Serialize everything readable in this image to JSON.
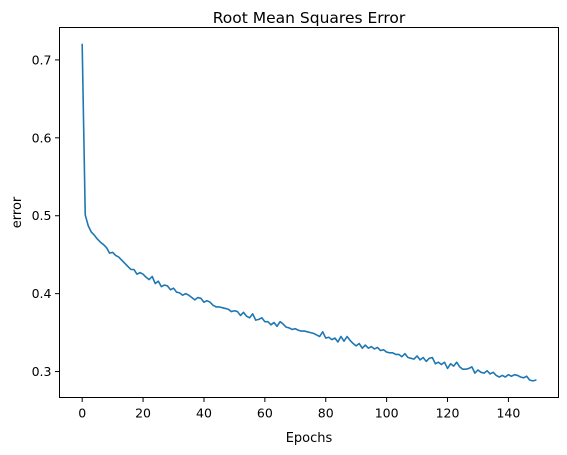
{
  "chart_data": {
    "type": "line",
    "title": "Root Mean Squares Error",
    "xlabel": "Epochs",
    "ylabel": "error",
    "xlim": [
      -7.45,
      156.45
    ],
    "ylim": [
      0.2667,
      0.7416
    ],
    "xticks": [
      0,
      20,
      40,
      60,
      80,
      100,
      120,
      140
    ],
    "yticks": [
      0.3,
      0.4,
      0.5,
      0.6,
      0.7
    ],
    "xtick_labels": [
      "0",
      "20",
      "40",
      "60",
      "80",
      "100",
      "120",
      "140"
    ],
    "ytick_labels": [
      "0.3",
      "0.4",
      "0.5",
      "0.6",
      "0.7"
    ],
    "grid": false,
    "legend": null,
    "line_color": "#1f77b4",
    "series": [
      {
        "x": [
          0,
          1,
          2,
          3,
          4,
          5,
          6,
          7,
          8,
          9,
          10,
          11,
          12,
          13,
          14,
          15,
          16,
          17,
          18,
          19,
          20,
          21,
          22,
          23,
          24,
          25,
          26,
          27,
          28,
          29,
          30,
          31,
          32,
          33,
          34,
          35,
          36,
          37,
          38,
          39,
          40,
          41,
          42,
          43,
          44,
          45,
          46,
          47,
          48,
          49,
          50,
          51,
          52,
          53,
          54,
          55,
          56,
          57,
          58,
          59,
          60,
          61,
          62,
          63,
          64,
          65,
          66,
          67,
          68,
          69,
          70,
          71,
          72,
          73,
          74,
          75,
          76,
          77,
          78,
          79,
          80,
          81,
          82,
          83,
          84,
          85,
          86,
          87,
          88,
          89,
          90,
          91,
          92,
          93,
          94,
          95,
          96,
          97,
          98,
          99,
          100,
          101,
          102,
          103,
          104,
          105,
          106,
          107,
          108,
          109,
          110,
          111,
          112,
          113,
          114,
          115,
          116,
          117,
          118,
          119,
          120,
          121,
          122,
          123,
          124,
          125,
          126,
          127,
          128,
          129,
          130,
          131,
          132,
          133,
          134,
          135,
          136,
          137,
          138,
          139,
          140,
          141,
          142,
          143,
          144,
          145,
          146,
          147,
          148,
          149
        ],
        "y": [
          0.72,
          0.501,
          0.487,
          0.479,
          0.475,
          0.47,
          0.466,
          0.463,
          0.459,
          0.452,
          0.453,
          0.449,
          0.447,
          0.443,
          0.439,
          0.435,
          0.431,
          0.431,
          0.425,
          0.427,
          0.425,
          0.421,
          0.418,
          0.422,
          0.413,
          0.416,
          0.409,
          0.411,
          0.41,
          0.405,
          0.407,
          0.402,
          0.401,
          0.398,
          0.4,
          0.398,
          0.395,
          0.392,
          0.395,
          0.394,
          0.389,
          0.391,
          0.389,
          0.385,
          0.383,
          0.383,
          0.382,
          0.381,
          0.38,
          0.377,
          0.378,
          0.377,
          0.372,
          0.376,
          0.371,
          0.369,
          0.374,
          0.366,
          0.367,
          0.369,
          0.364,
          0.364,
          0.36,
          0.363,
          0.358,
          0.364,
          0.361,
          0.357,
          0.356,
          0.354,
          0.355,
          0.353,
          0.352,
          0.352,
          0.351,
          0.35,
          0.349,
          0.347,
          0.345,
          0.351,
          0.343,
          0.344,
          0.341,
          0.343,
          0.338,
          0.345,
          0.339,
          0.345,
          0.34,
          0.336,
          0.333,
          0.336,
          0.33,
          0.334,
          0.33,
          0.332,
          0.329,
          0.331,
          0.327,
          0.328,
          0.325,
          0.324,
          0.324,
          0.322,
          0.322,
          0.319,
          0.323,
          0.318,
          0.317,
          0.316,
          0.32,
          0.315,
          0.318,
          0.313,
          0.317,
          0.318,
          0.31,
          0.312,
          0.309,
          0.312,
          0.304,
          0.31,
          0.307,
          0.312,
          0.306,
          0.303,
          0.303,
          0.304,
          0.306,
          0.298,
          0.302,
          0.299,
          0.298,
          0.301,
          0.297,
          0.299,
          0.295,
          0.293,
          0.295,
          0.293,
          0.296,
          0.294,
          0.296,
          0.295,
          0.293,
          0.292,
          0.294,
          0.289,
          0.288,
          0.289
        ]
      }
    ]
  }
}
